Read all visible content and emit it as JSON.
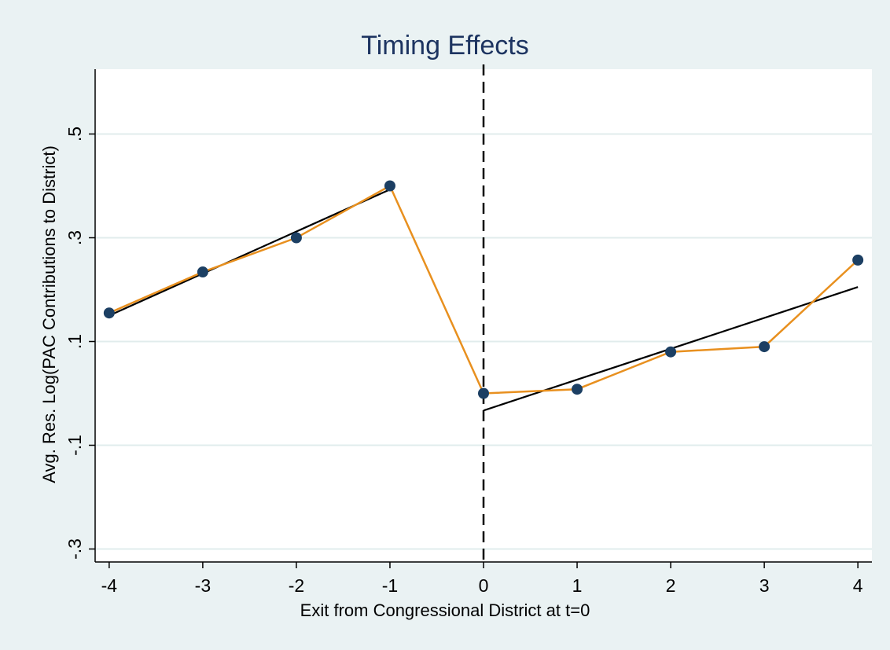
{
  "colors": {
    "background": "#eaf2f3",
    "plot_background": "#ffffff",
    "grid": "#e1ecec",
    "title": "#1d3461",
    "marker": "#1c3f63",
    "connect_line": "#e8901f",
    "fit_line": "#000000",
    "reference_line": "#000000"
  },
  "chart_data": {
    "type": "scatter",
    "title": "Timing Effects",
    "xlabel": "Exit from Congressional District at t=0",
    "ylabel": "Avg. Res. Log(PAC Contributions to District)",
    "xlim": [
      -4.15,
      4.15
    ],
    "ylim": [
      -0.325,
      0.625
    ],
    "x_ticks": [
      -4,
      -3,
      -2,
      -1,
      0,
      1,
      2,
      3,
      4
    ],
    "x_tick_labels": [
      "-4",
      "-3",
      "-2",
      "-1",
      "0",
      "1",
      "2",
      "3",
      "4"
    ],
    "y_ticks": [
      -0.3,
      -0.1,
      0.1,
      0.3,
      0.5
    ],
    "y_tick_labels": [
      "-.3",
      "-.1",
      ".1",
      ".3",
      ".5"
    ],
    "grid": true,
    "reference_line": {
      "x": 0,
      "style": "dashed"
    },
    "series": [
      {
        "kind": "markers-connected",
        "x": [
          -4,
          -3,
          -2,
          -1,
          0,
          1,
          2,
          3,
          4
        ],
        "y": [
          0.155,
          0.234,
          0.3,
          0.4,
          0.0,
          0.008,
          0.08,
          0.09,
          0.257
        ]
      },
      {
        "kind": "line-fit",
        "x": [
          -4,
          -1
        ],
        "y": [
          0.15,
          0.393
        ]
      },
      {
        "kind": "line-fit",
        "x": [
          0,
          4
        ],
        "y": [
          -0.033,
          0.205
        ]
      }
    ]
  }
}
